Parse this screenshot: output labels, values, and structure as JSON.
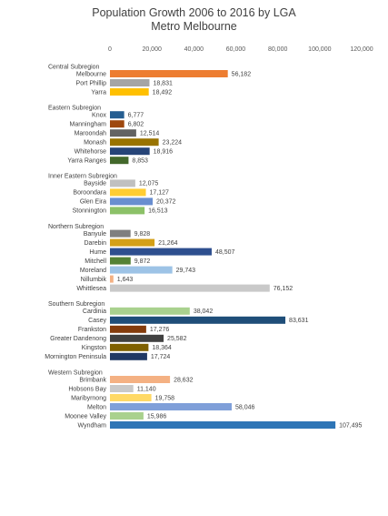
{
  "chart_data": {
    "type": "bar",
    "orientation": "horizontal",
    "title": "Population Growth 2006 to 2016 by LGA",
    "subtitle": "Metro Melbourne",
    "xlim": [
      0,
      120000
    ],
    "ticks": [
      "0",
      "20,000",
      "40,000",
      "60,000",
      "80,000",
      "100,000",
      "120,000"
    ],
    "tick_values": [
      0,
      20000,
      40000,
      60000,
      80000,
      100000,
      120000
    ],
    "grid": false,
    "legend": "none",
    "groups": [
      {
        "name": "Central Subregion",
        "items": [
          {
            "label": "Melbourne",
            "value": 56182,
            "value_label": "56,182",
            "color": "#ED7D31"
          },
          {
            "label": "Port Phillip",
            "value": 18831,
            "value_label": "18,831",
            "color": "#A5A5A5"
          },
          {
            "label": "Yarra",
            "value": 18492,
            "value_label": "18,492",
            "color": "#FFC000"
          }
        ]
      },
      {
        "name": "Eastern Subregion",
        "items": [
          {
            "label": "Knox",
            "value": 6777,
            "value_label": "6,777",
            "color": "#255E91"
          },
          {
            "label": "Manningham",
            "value": 6802,
            "value_label": "6,802",
            "color": "#9E480E"
          },
          {
            "label": "Maroondah",
            "value": 12514,
            "value_label": "12,514",
            "color": "#636363"
          },
          {
            "label": "Monash",
            "value": 23224,
            "value_label": "23,224",
            "color": "#997300"
          },
          {
            "label": "Whitehorse",
            "value": 18916,
            "value_label": "18,916",
            "color": "#264478"
          },
          {
            "label": "Yarra Ranges",
            "value": 8853,
            "value_label": "8,853",
            "color": "#43682B"
          }
        ]
      },
      {
        "name": "Inner Eastern Subregion",
        "items": [
          {
            "label": "Bayside",
            "value": 12075,
            "value_label": "12,075",
            "color": "#C0C0C0"
          },
          {
            "label": "Boroondara",
            "value": 17127,
            "value_label": "17,127",
            "color": "#FFCD33"
          },
          {
            "label": "Glen Eira",
            "value": 20372,
            "value_label": "20,372",
            "color": "#698ED0"
          },
          {
            "label": "Stonnington",
            "value": 16513,
            "value_label": "16,513",
            "color": "#8CC168"
          }
        ]
      },
      {
        "name": "Northern Subregion",
        "items": [
          {
            "label": "Banyule",
            "value": 9828,
            "value_label": "9,828",
            "color": "#7F7F7F"
          },
          {
            "label": "Darebin",
            "value": 21264,
            "value_label": "21,264",
            "color": "#D4A017"
          },
          {
            "label": "Hume",
            "value": 48507,
            "value_label": "48,507",
            "color": "#2E4F8F"
          },
          {
            "label": "Mitchell",
            "value": 9872,
            "value_label": "9,872",
            "color": "#548235"
          },
          {
            "label": "Moreland",
            "value": 29743,
            "value_label": "29,743",
            "color": "#9DC3E6"
          },
          {
            "label": "Nillumbik",
            "value": 1643,
            "value_label": "1,643",
            "color": "#F4B183"
          },
          {
            "label": "Whittlesea",
            "value": 76152,
            "value_label": "76,152",
            "color": "#C9C9C9"
          }
        ]
      },
      {
        "name": "Southern Subregion",
        "items": [
          {
            "label": "Cardinia",
            "value": 38042,
            "value_label": "38,042",
            "color": "#A9D18E"
          },
          {
            "label": "Casey",
            "value": 83631,
            "value_label": "83,631",
            "color": "#1F4E79"
          },
          {
            "label": "Frankston",
            "value": 17276,
            "value_label": "17,276",
            "color": "#843C0C"
          },
          {
            "label": "Greater Dandenong",
            "value": 25582,
            "value_label": "25,582",
            "color": "#404040"
          },
          {
            "label": "Kingston",
            "value": 18364,
            "value_label": "18,364",
            "color": "#7F6000"
          },
          {
            "label": "Mornington Peninsula",
            "value": 17724,
            "value_label": "17,724",
            "color": "#203864"
          }
        ]
      },
      {
        "name": "Western Subregion",
        "items": [
          {
            "label": "Brimbank",
            "value": 28632,
            "value_label": "28,632",
            "color": "#F4B183"
          },
          {
            "label": "Hobsons Bay",
            "value": 11140,
            "value_label": "11,140",
            "color": "#C9C9C9"
          },
          {
            "label": "Maribyrnong",
            "value": 19758,
            "value_label": "19,758",
            "color": "#FFD966"
          },
          {
            "label": "Melton",
            "value": 58046,
            "value_label": "58,046",
            "color": "#7F9FD9"
          },
          {
            "label": "Moonee Valley",
            "value": 15986,
            "value_label": "15,986",
            "color": "#A9D18E"
          },
          {
            "label": "Wyndham",
            "value": 107495,
            "value_label": "107,495",
            "color": "#2E75B6"
          }
        ]
      }
    ]
  }
}
